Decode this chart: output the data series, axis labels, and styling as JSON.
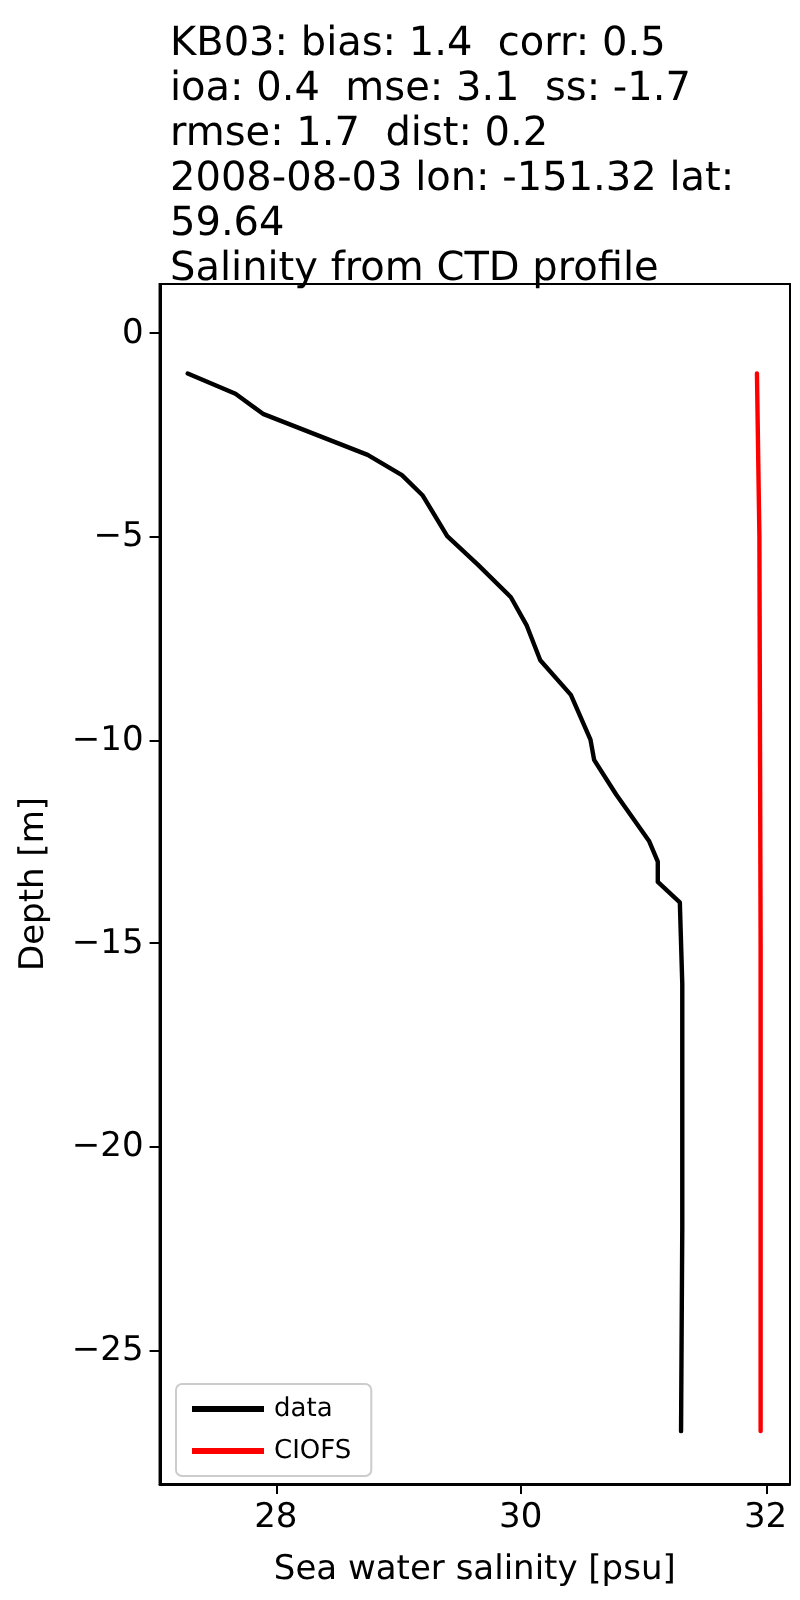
{
  "chart_data": {
    "type": "line",
    "title": "KB03: bias: 1.4  corr: 0.5\nioa: 0.4  mse: 3.1  ss: -1.7\nrmse: 1.7  dist: 0.2\n2008-08-03 lon: -151.32 lat:\n59.64\nSalinity from CTD profile",
    "xlabel": "Sea water salinity [psu]",
    "ylabel": "Depth [m]",
    "series": [
      {
        "name": "data",
        "color": "#000000",
        "x": [
          27.28,
          27.67,
          27.9,
          28.75,
          29.03,
          29.2,
          29.4,
          29.65,
          29.92,
          30.05,
          30.16,
          30.41,
          30.57,
          30.6,
          30.78,
          31.05,
          31.12,
          31.12,
          31.3,
          31.32,
          31.32,
          31.31
        ],
        "values": [
          -1,
          -1.5,
          -2,
          -3,
          -3.5,
          -4,
          -5,
          -5.7,
          -6.5,
          -7.2,
          -8.05,
          -8.9,
          -10,
          -10.5,
          -11.35,
          -12.5,
          -13,
          -13.5,
          -14,
          -16,
          -22,
          -27
        ]
      },
      {
        "name": "CIOFS",
        "color": "#ff0000",
        "x": [
          31.93,
          31.95,
          31.96,
          31.96
        ],
        "values": [
          -1,
          -5,
          -15,
          -27
        ]
      }
    ],
    "xlim": [
      27.05,
      32.2
    ],
    "xticks": [
      28,
      30,
      32
    ],
    "ylim": [
      -28.3,
      1.2
    ],
    "yticks": [
      -25,
      -20,
      -15,
      -10,
      -5,
      0
    ],
    "legend": "bottom left",
    "line_style": "solid"
  }
}
